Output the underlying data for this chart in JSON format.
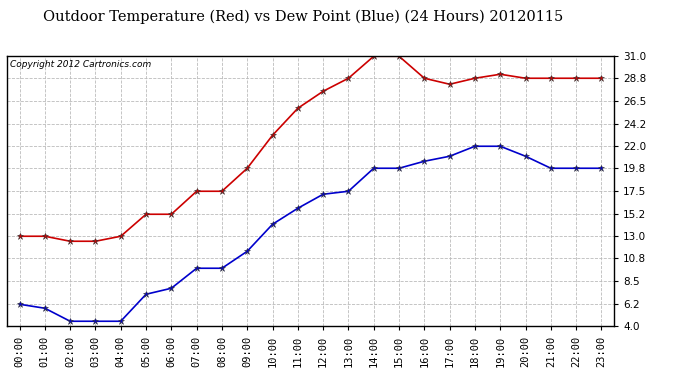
{
  "title": "Outdoor Temperature (Red) vs Dew Point (Blue) (24 Hours) 20120115",
  "copyright": "Copyright 2012 Cartronics.com",
  "x_labels": [
    "00:00",
    "01:00",
    "02:00",
    "03:00",
    "04:00",
    "05:00",
    "06:00",
    "07:00",
    "08:00",
    "09:00",
    "10:00",
    "11:00",
    "12:00",
    "13:00",
    "14:00",
    "15:00",
    "16:00",
    "17:00",
    "18:00",
    "19:00",
    "20:00",
    "21:00",
    "22:00",
    "23:00"
  ],
  "temp_red": [
    13.0,
    13.0,
    12.5,
    12.5,
    13.0,
    15.2,
    15.2,
    17.5,
    17.5,
    19.8,
    23.1,
    25.8,
    27.5,
    28.8,
    31.0,
    31.0,
    28.8,
    28.2,
    28.8,
    29.2,
    28.8,
    28.8,
    28.8,
    28.8
  ],
  "dew_blue": [
    6.2,
    5.8,
    4.5,
    4.5,
    4.5,
    7.2,
    7.8,
    9.8,
    9.8,
    11.5,
    14.2,
    15.8,
    17.2,
    17.5,
    19.8,
    19.8,
    20.5,
    21.0,
    22.0,
    22.0,
    21.0,
    19.8,
    19.8,
    19.8
  ],
  "y_min": 4.0,
  "y_max": 31.0,
  "y_ticks": [
    4.0,
    6.2,
    8.5,
    10.8,
    13.0,
    15.2,
    17.5,
    19.8,
    22.0,
    24.2,
    26.5,
    28.8,
    31.0
  ],
  "red_color": "#cc0000",
  "blue_color": "#0000cc",
  "background_color": "#ffffff",
  "grid_color": "#bbbbbb",
  "title_fontsize": 10.5,
  "copyright_fontsize": 6.5,
  "tick_fontsize": 7.5
}
